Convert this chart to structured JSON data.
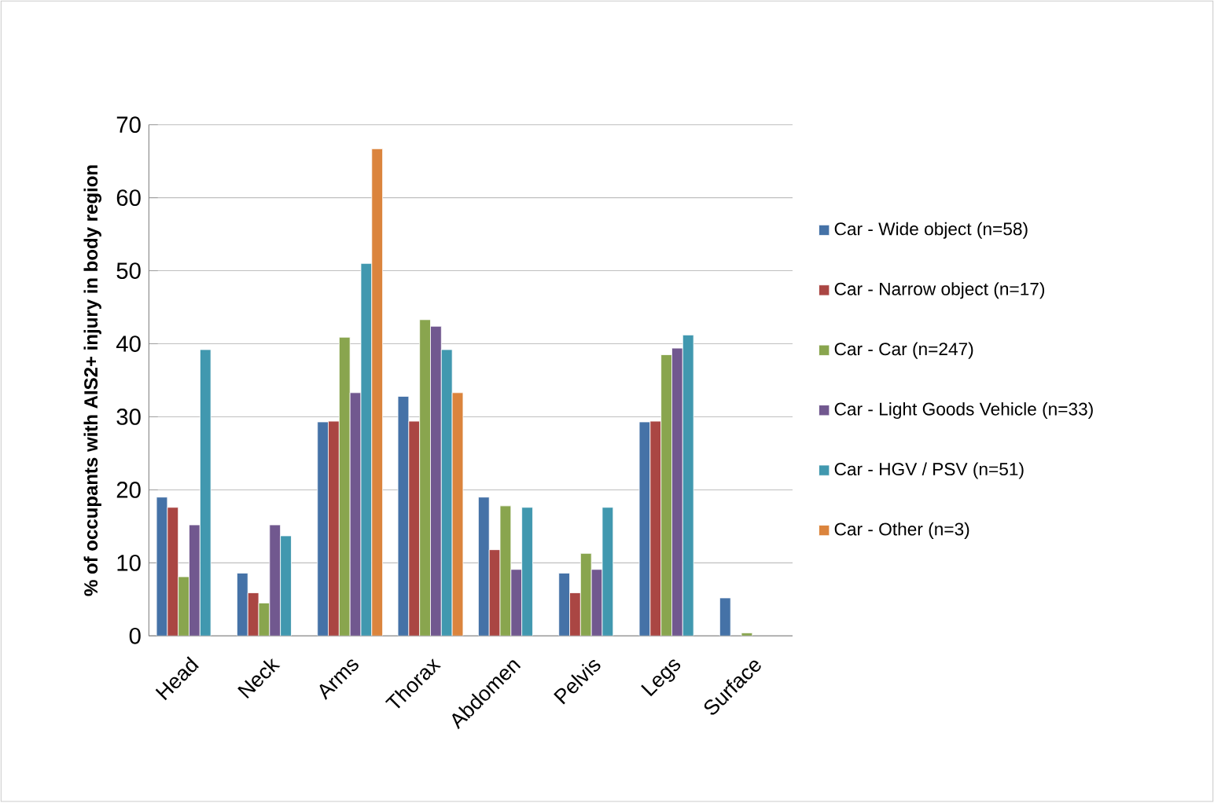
{
  "chart_data": {
    "type": "bar",
    "ylabel": "% of occupants with AIS2+ injury in body region",
    "categories": [
      "Head",
      "Neck",
      "Arms",
      "Thorax",
      "Abdomen",
      "Pelvis",
      "Legs",
      "Surface"
    ],
    "series": [
      {
        "name": "Car - Wide object (n=58)",
        "color": "#4572a7",
        "values": [
          19.0,
          8.6,
          29.3,
          32.8,
          19.0,
          8.6,
          29.3,
          5.2
        ]
      },
      {
        "name": "Car - Narrow object (n=17)",
        "color": "#aa4643",
        "values": [
          17.6,
          5.9,
          29.4,
          29.4,
          11.8,
          5.9,
          29.4,
          null
        ]
      },
      {
        "name": "Car - Car (n=247)",
        "color": "#89a54e",
        "values": [
          8.1,
          4.5,
          40.9,
          43.3,
          17.8,
          11.3,
          38.5,
          0.4
        ]
      },
      {
        "name": "Car - Light Goods Vehicle (n=33)",
        "color": "#71588f",
        "values": [
          15.2,
          15.2,
          33.3,
          42.4,
          9.1,
          9.1,
          39.4,
          null
        ]
      },
      {
        "name": "Car - HGV / PSV (n=51)",
        "color": "#4198af",
        "values": [
          39.2,
          13.7,
          51.0,
          39.2,
          17.6,
          17.6,
          41.2,
          null
        ]
      },
      {
        "name": "Car - Other (n=3)",
        "color": "#db843d",
        "values": [
          null,
          null,
          66.7,
          33.3,
          null,
          null,
          null,
          null
        ]
      }
    ],
    "ylim": [
      0,
      70
    ],
    "yticks": [
      0,
      10,
      20,
      30,
      40,
      50,
      60,
      70
    ],
    "grid": "y",
    "legend": "right"
  }
}
